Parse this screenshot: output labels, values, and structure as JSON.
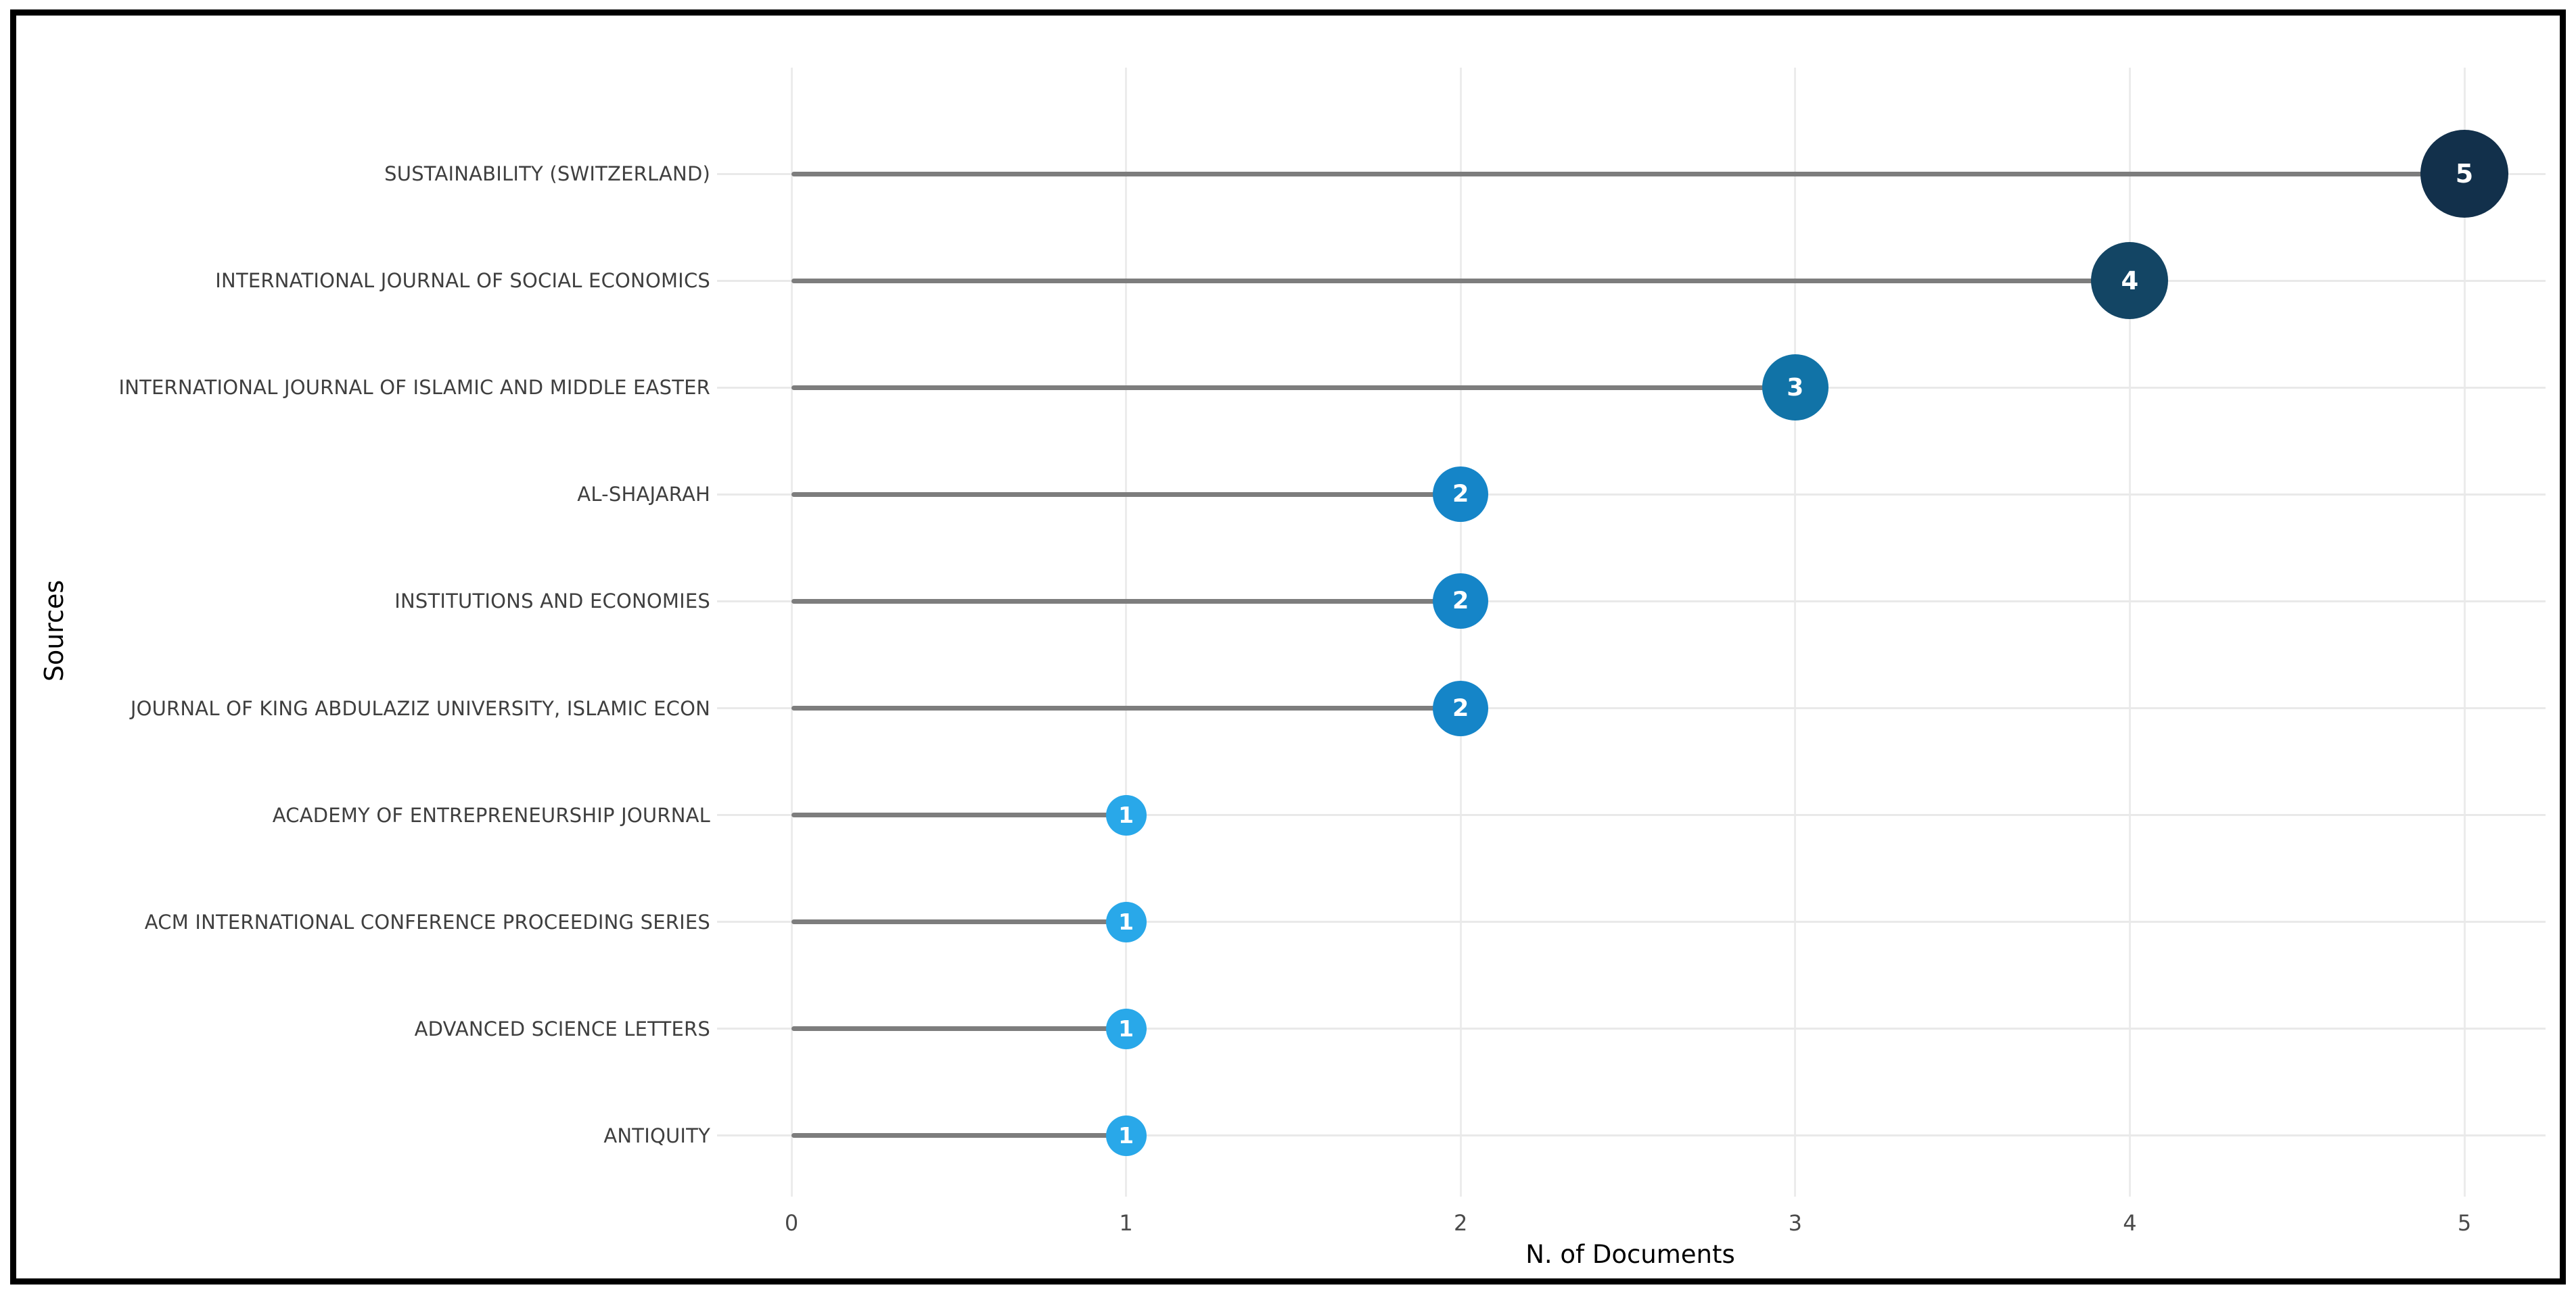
{
  "chart_data": {
    "type": "scatter",
    "variant": "lollipop",
    "title": "",
    "xlabel": "N. of Documents",
    "ylabel": "Sources",
    "categories": [
      "SUSTAINABILITY (SWITZERLAND)",
      "INTERNATIONAL JOURNAL OF SOCIAL ECONOMICS",
      "INTERNATIONAL JOURNAL OF ISLAMIC AND MIDDLE EASTER",
      "AL-SHAJARAH",
      "INSTITUTIONS AND ECONOMIES",
      "JOURNAL OF KING ABDULAZIZ UNIVERSITY, ISLAMIC ECON",
      "ACADEMY OF ENTREPRENEURSHIP JOURNAL",
      "ACM INTERNATIONAL CONFERENCE PROCEEDING SERIES",
      "ADVANCED SCIENCE LETTERS",
      "ANTIQUITY"
    ],
    "values": [
      5,
      4,
      3,
      2,
      2,
      2,
      1,
      1,
      1,
      1
    ],
    "point_labels": [
      "5",
      "4",
      "3",
      "2",
      "2",
      "2",
      "1",
      "1",
      "1",
      "1"
    ],
    "x_ticks": [
      "0",
      "1",
      "2",
      "3",
      "4",
      "5"
    ],
    "xlim": [
      0,
      5
    ],
    "grid": true,
    "legend": "none",
    "colors_by_value": {
      "1": "#29A8E9",
      "2": "#1585C8",
      "3": "#1173A7",
      "4": "#134564",
      "5": "#12304B"
    },
    "stem_color": "#7D7D7D",
    "gridline_color": "#ECECEC",
    "category_label_color": "#3F3F3F",
    "tick_label_color": "#4A4A4A",
    "frame_color": "#000000",
    "background": "#FFFFFF"
  },
  "layout_hints": {
    "orientation": "horizontal",
    "legend_position": "none",
    "point_radius_px_by_value": {
      "1": 30,
      "2": 41,
      "3": 49,
      "4": 57,
      "5": 65
    }
  }
}
